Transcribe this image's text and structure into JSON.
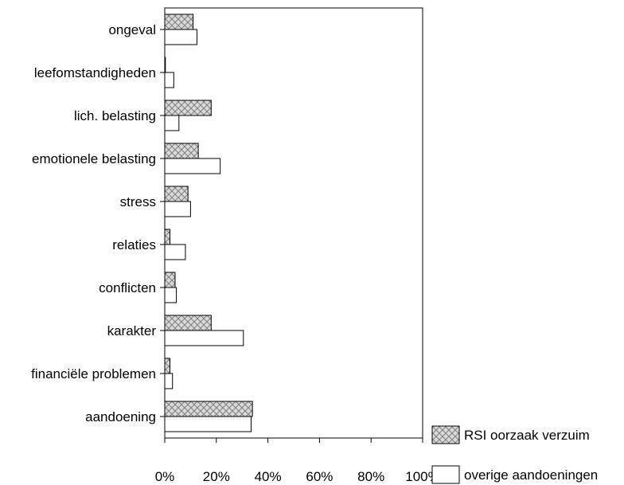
{
  "chart_data": {
    "type": "bar",
    "orientation": "horizontal",
    "categories": [
      "ongeval",
      "leefomstandigheden",
      "lich. belasting",
      "emotionele belasting",
      "stress",
      "relaties",
      "conflicten",
      "karakter",
      "financiële problemen",
      "aandoening"
    ],
    "series": [
      {
        "name": "RSI oorzaak verzuim",
        "values": [
          11,
          0,
          18,
          13,
          9,
          2,
          4,
          18,
          2,
          34
        ],
        "pattern": "crosshatch"
      },
      {
        "name": "overige aandoeningen",
        "values": [
          12.5,
          3.5,
          5.5,
          21.5,
          10,
          8,
          4.5,
          30.5,
          3,
          33.5
        ],
        "pattern": "none"
      }
    ],
    "xticks": [
      "0%",
      "20%",
      "40%",
      "60%",
      "80%",
      "100%"
    ],
    "xlim": [
      0,
      100
    ],
    "legend_position": "bottom-right",
    "grid": false
  },
  "colors": {
    "hatch_fill": "#d9d9d9",
    "hatch_line": "#7f7f7f",
    "bar_stroke": "#000000",
    "plain_fill": "#ffffff"
  }
}
